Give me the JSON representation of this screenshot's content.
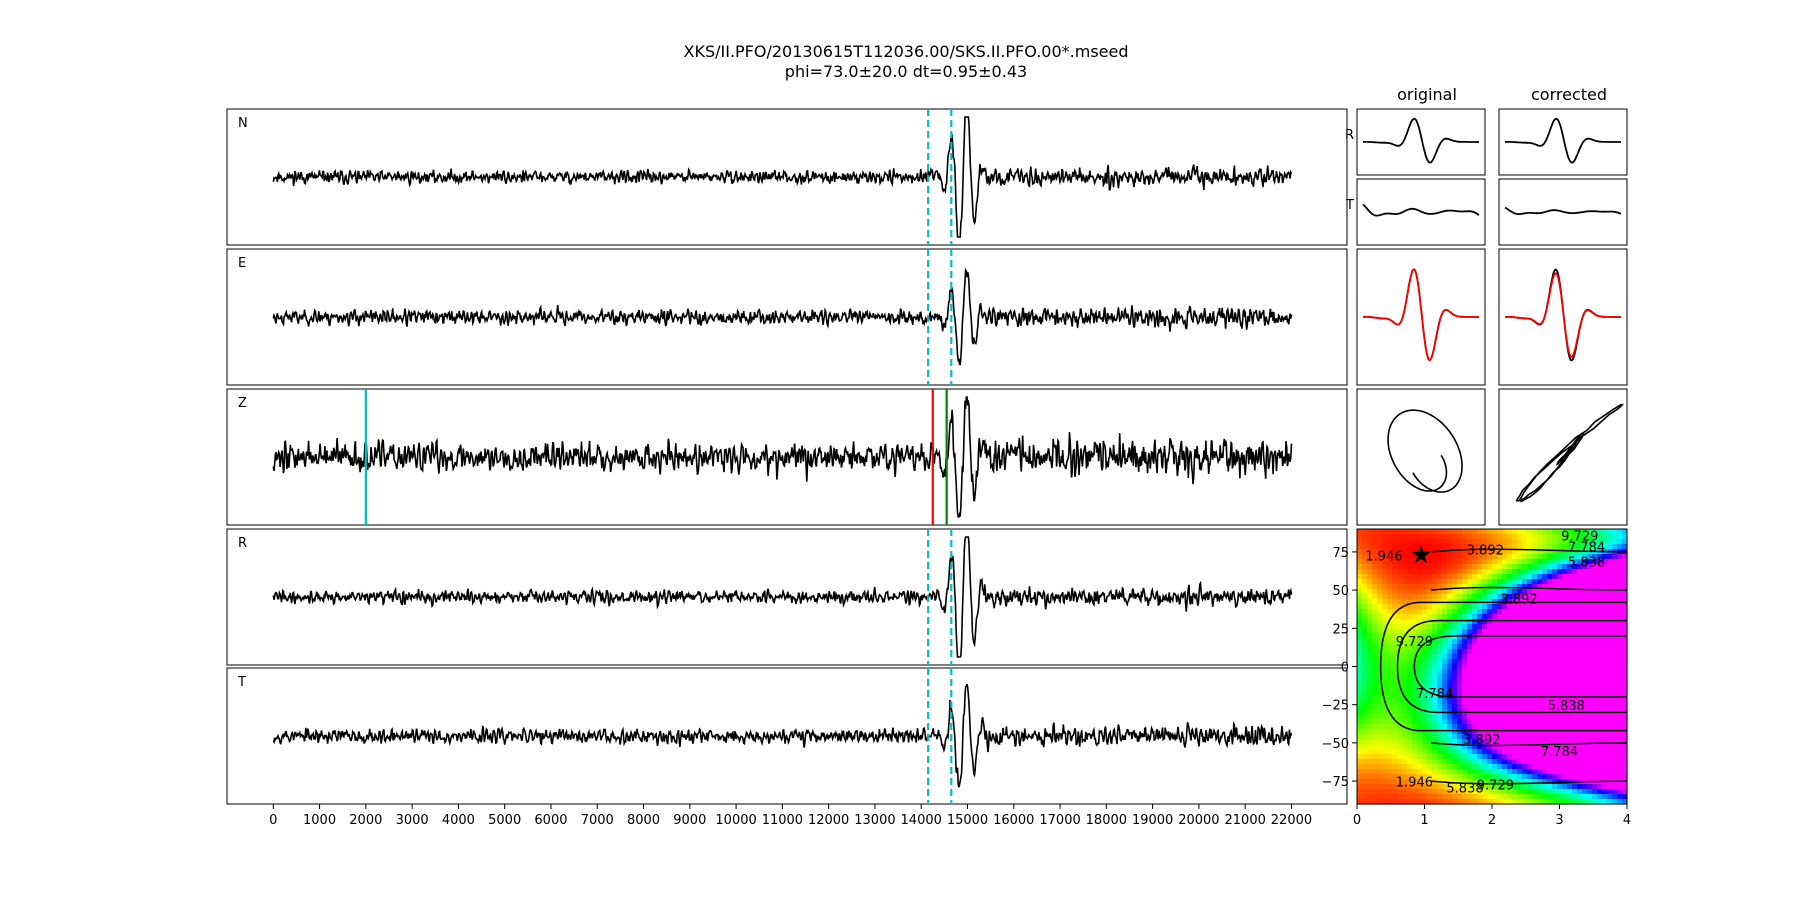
{
  "title": {
    "line1": "XKS/II.PFO/20130615T112036.00/SKS.II.PFO.00*.mseed",
    "line2": "phi=73.0±20.0 dt=0.95±0.43"
  },
  "columns": {
    "original": "original",
    "corrected": "corrected"
  },
  "colors": {
    "trace": "#000000",
    "window_marker": "#00bfbf",
    "pick_red": "#ff0000",
    "pick_green": "#008000",
    "cyan_pick": "#00bfbf",
    "star": "#000000"
  },
  "chart_data": [
    {
      "type": "line",
      "name": "seismogram-panels",
      "panels": [
        {
          "label": "N",
          "seed": 11,
          "amp": 0.35,
          "arrival_amp": 1.0
        },
        {
          "label": "E",
          "seed": 23,
          "amp": 0.4,
          "arrival_amp": 0.6
        },
        {
          "label": "Z",
          "seed": 37,
          "amp": 0.8,
          "arrival_amp": 0.9
        },
        {
          "label": "R",
          "seed": 41,
          "amp": 0.35,
          "arrival_amp": 1.0
        },
        {
          "label": "T",
          "seed": 53,
          "amp": 0.4,
          "arrival_amp": 0.7
        }
      ],
      "x_range": [
        -1000,
        23200
      ],
      "data_range": [
        0,
        22000
      ],
      "xticks": [
        0,
        1000,
        2000,
        3000,
        4000,
        5000,
        6000,
        7000,
        8000,
        9000,
        10000,
        11000,
        12000,
        13000,
        14000,
        15000,
        16000,
        17000,
        18000,
        19000,
        20000,
        21000,
        22000
      ],
      "window_start": 14150,
      "window_end": 14650,
      "window_panels": [
        "N",
        "E",
        "R",
        "T"
      ],
      "z_picks": [
        {
          "x": 2000,
          "color": "cyan_pick"
        },
        {
          "x": 14250,
          "color": "pick_red"
        },
        {
          "x": 14550,
          "color": "pick_green"
        }
      ]
    },
    {
      "type": "heatmap",
      "name": "error-surface",
      "x_range": [
        0,
        4
      ],
      "y_range": [
        -90,
        90
      ],
      "xticks": [
        0,
        1,
        2,
        3,
        4
      ],
      "yticks": [
        75,
        50,
        25,
        0,
        -25,
        -50,
        -75
      ],
      "best": {
        "dt": 0.95,
        "phi": 73.0
      },
      "contour_labels": [
        {
          "text": "1.946",
          "x": 0.4,
          "y": 72
        },
        {
          "text": "3.892",
          "x": 1.9,
          "y": 76
        },
        {
          "text": "9.729",
          "x": 3.3,
          "y": 85
        },
        {
          "text": "7.784",
          "x": 3.4,
          "y": 78
        },
        {
          "text": "5.838",
          "x": 3.4,
          "y": 68
        },
        {
          "text": "3.892",
          "x": 2.4,
          "y": 44
        },
        {
          "text": "9.729",
          "x": 0.85,
          "y": 16
        },
        {
          "text": "7.784",
          "x": 1.15,
          "y": -18
        },
        {
          "text": "5.838",
          "x": 3.1,
          "y": -26
        },
        {
          "text": "3.892",
          "x": 1.85,
          "y": -48
        },
        {
          "text": "7.784",
          "x": 3.0,
          "y": -56
        },
        {
          "text": "9.729",
          "x": 2.05,
          "y": -78
        },
        {
          "text": "5.838",
          "x": 1.6,
          "y": -80
        },
        {
          "text": "1.946",
          "x": 0.85,
          "y": -76
        }
      ]
    },
    {
      "type": "line",
      "name": "waveform-insets",
      "rows": [
        {
          "label": "R",
          "original_seed": 61,
          "corrected_seed": 61
        },
        {
          "label": "T",
          "original_seed": 71,
          "corrected_seed": 73
        }
      ],
      "overlay_colors": [
        "trace",
        "pick_red"
      ],
      "particle_motion": [
        "elliptical",
        "linear"
      ]
    }
  ]
}
